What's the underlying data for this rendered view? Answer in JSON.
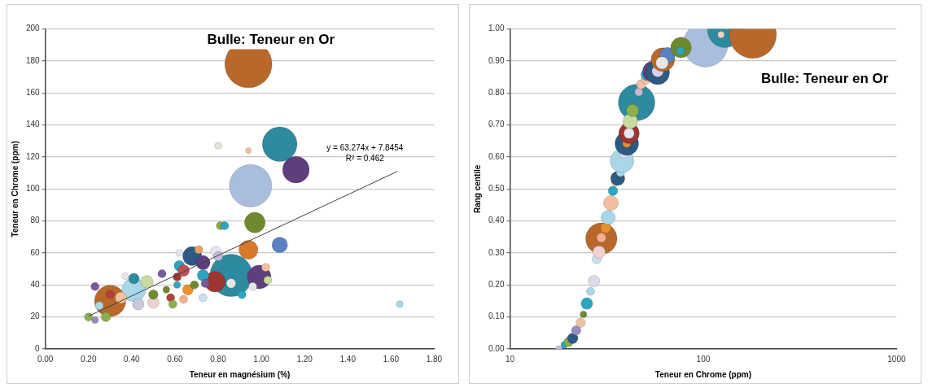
{
  "chart_data": [
    {
      "type": "bubble",
      "xlabel": "Teneur en magnésium (%)",
      "ylabel": "Teneur en Chrome (ppm)",
      "xlim": [
        0,
        1.8
      ],
      "ylim": [
        0,
        200
      ],
      "xticks": [
        {
          "value": 0,
          "label": "0.00"
        },
        {
          "value": 0.2,
          "label": "0.20"
        },
        {
          "value": 0.4,
          "label": "0.40"
        },
        {
          "value": 0.6,
          "label": "0.60"
        },
        {
          "value": 0.8,
          "label": "0.80"
        },
        {
          "value": 1,
          "label": "1.00"
        },
        {
          "value": 1.2,
          "label": "1.20"
        },
        {
          "value": 1.4,
          "label": "1.40"
        },
        {
          "value": 1.6,
          "label": "1.60"
        },
        {
          "value": 1.8,
          "label": "1.80"
        }
      ],
      "yticks": [
        0,
        20,
        40,
        60,
        80,
        100,
        120,
        140,
        160,
        180,
        200
      ],
      "grid": "y",
      "legend": false,
      "annotations": [
        "Bulle: Teneur en Or",
        {
          "text": "y = 63.274x + 7.8454",
          "x": 1.63,
          "y": 111
        },
        {
          "text": "R² = 0.462",
          "x": 1.63,
          "y": 111
        }
      ],
      "series": [
        {
          "x": [
            0.94,
            1.085,
            1.16,
            0.95,
            0.97,
            0.94,
            1.085,
            0.86,
            0.99,
            0.68,
            0.73,
            0.3,
            0.41,
            0.785,
            0.8,
            0.94,
            0.81,
            0.83,
            1.64,
            0.23,
            0.2,
            0.23,
            0.28,
            0.25,
            0.3,
            0.35,
            0.37,
            0.41,
            0.43,
            0.47,
            0.5,
            0.5,
            0.54,
            0.56,
            0.58,
            0.59,
            0.61,
            0.61,
            0.64,
            0.62,
            0.62,
            0.64,
            0.66,
            0.71,
            0.73,
            0.73,
            0.69,
            0.74,
            0.79,
            0.8,
            0.86,
            0.91,
            0.96,
            1.02,
            1.03
          ],
          "values": [
            178,
            128,
            112,
            102,
            79,
            62,
            65,
            46,
            45,
            58,
            54,
            30,
            37,
            42,
            127,
            124,
            77,
            77,
            28,
            39,
            20,
            18,
            20,
            27,
            34,
            32,
            45.5,
            44,
            28,
            42,
            29,
            34,
            47,
            37,
            32,
            28,
            45,
            40,
            31,
            60,
            52,
            49,
            37,
            62,
            32,
            46,
            40,
            41,
            61,
            58,
            41,
            34,
            39,
            51,
            43
          ],
          "sizes": [
            1,
            0.54,
            0.32,
            0.81,
            0.19,
            0.16,
            0.11,
            0.81,
            0.25,
            0.16,
            0.09,
            0.44,
            0.25,
            0.19,
            0.02,
            0.015,
            0.03,
            0.03,
            0.02,
            0.03,
            0.03,
            0.02,
            0.04,
            0.03,
            0.03,
            0.06,
            0.02,
            0.05,
            0.06,
            0.07,
            0.06,
            0.04,
            0.03,
            0.02,
            0.03,
            0.03,
            0.03,
            0.02,
            0.03,
            0.02,
            0.05,
            0.06,
            0.05,
            0.03,
            0.03,
            0.06,
            0.03,
            0.03,
            0.05,
            0.04,
            0.04,
            0.03,
            0.03,
            0.03,
            0.03
          ],
          "colors": [
            "#b8682a",
            "#2e8a9e",
            "#5e3f7e",
            "#a8bedc",
            "#6f8a2e",
            "#d8782a",
            "#5b82c0",
            "#2e8a9e",
            "#5e3f7e",
            "#2d5a82",
            "#5e3f7e",
            "#b8682a",
            "#a8d8e8",
            "#9e3530",
            "#dde6d8",
            "#f0c0a0",
            "#8aaa3e",
            "#2aa6c0",
            "#a8d8e8",
            "#7a5a9e",
            "#8ab04e",
            "#9a8ac0",
            "#8ab04e",
            "#a8d8e8",
            "#b8403a",
            "#f0c0a0",
            "#e6e6e6",
            "#2e8a9e",
            "#c8c8d8",
            "#c8dca0",
            "#f0d0d0",
            "#6f8a2e",
            "#7a5a9e",
            "#6f8a2e",
            "#b8403a",
            "#8ab04e",
            "#9e3530",
            "#2aa6c0",
            "#f0b090",
            "#e6e6e6",
            "#2aa6c0",
            "#c05050",
            "#e8902a",
            "#e8a060",
            "#c8e0ec",
            "#2aa6c0",
            "#6f8a2e",
            "#7a5a9e",
            "#e6e6ee",
            "#c8b8d8",
            "#e6e6e6",
            "#2aa6c0",
            "#e6e6e6",
            "#f0c0a0",
            "#c8dca0"
          ]
        },
        {
          "type": "line",
          "x": [
            0.2,
            1.63
          ],
          "values": [
            20.5,
            111.0
          ],
          "color": "#404040"
        }
      ]
    },
    {
      "type": "bubble",
      "xlabel": "Teneur en Chrome (ppm)",
      "ylabel": "Rang centile",
      "log": "x",
      "xlim": [
        10,
        1000
      ],
      "ylim": [
        0,
        1
      ],
      "xticks": [
        10,
        100,
        1000
      ],
      "yticks": [
        {
          "value": 0,
          "label": "0.00"
        },
        {
          "value": 0.1,
          "label": "0.10"
        },
        {
          "value": 0.2,
          "label": "0.20"
        },
        {
          "value": 0.3,
          "label": "0.30"
        },
        {
          "value": 0.4,
          "label": "0.40"
        },
        {
          "value": 0.5,
          "label": "0.50"
        },
        {
          "value": 0.6,
          "label": "0.60"
        },
        {
          "value": 0.7,
          "label": "0.70"
        },
        {
          "value": 0.8,
          "label": "0.80"
        },
        {
          "value": 0.9,
          "label": "0.90"
        },
        {
          "value": 1,
          "label": "1.00"
        }
      ],
      "grid": "y",
      "legend": false,
      "annotations": [
        "Bulle: Teneur en Or"
      ],
      "series": [
        {
          "x": [
            17.9,
            19.1,
            20.1,
            21.1,
            22.0,
            23.2,
            24.0,
            25.0,
            26.1,
            27.2,
            28.1,
            28.9,
            29.7,
            29.7,
            31.3,
            32.2,
            33.3,
            34.1,
            35.1,
            36.1,
            37.3,
            38.0,
            38.9,
            40.2,
            40.2,
            41.3,
            41.3,
            41.9,
            43.1,
            45.2,
            46.4,
            47.7,
            50.5,
            51.0,
            55.1,
            58.1,
            58.1,
            61.8,
            65.2,
            61.2,
            76.7,
            76.2,
            102.6,
            129.4,
            123.6,
            180.4
          ],
          "values": [
            0.0,
            0.013,
            0.022,
            0.033,
            0.058,
            0.082,
            0.108,
            0.142,
            0.18,
            0.212,
            0.281,
            0.303,
            0.345,
            0.348,
            0.379,
            0.411,
            0.456,
            0.494,
            0.522,
            0.533,
            0.551,
            0.588,
            0.611,
            0.642,
            0.642,
            0.674,
            0.674,
            0.712,
            0.745,
            0.77,
            0.803,
            0.827,
            0.842,
            0.857,
            0.867,
            0.863,
            0.868,
            0.904,
            0.918,
            0.894,
            0.942,
            0.931,
            0.951,
            0.996,
            0.982,
            0.982
          ],
          "sizes": [
            0.02,
            0.02,
            0.04,
            0.05,
            0.04,
            0.04,
            0.02,
            0.06,
            0.03,
            0.06,
            0.04,
            0.07,
            0.44,
            0.04,
            0.05,
            0.09,
            0.1,
            0.04,
            0.03,
            0.09,
            0.03,
            0.25,
            0.04,
            0.25,
            0.03,
            0.19,
            0.05,
            0.1,
            0.07,
            0.6,
            0.03,
            0.04,
            0.04,
            0.06,
            0.2,
            0.25,
            0.06,
            0.25,
            0.11,
            0.07,
            0.19,
            0.03,
            0.9,
            0.54,
            0.02,
            1
          ],
          "colors": [
            "#c8b8d8",
            "#2aa6c0",
            "#8ab04e",
            "#2d5a82",
            "#9a8ac0",
            "#f0c0a0",
            "#6f8a2e",
            "#2aa6c0",
            "#a8d8e8",
            "#dcdce8",
            "#c8e0ec",
            "#f0d0d0",
            "#b8682a",
            "#f0b090",
            "#e8902a",
            "#a8d8e8",
            "#f0c0a0",
            "#2aa6c0",
            "#f0c0a0",
            "#2d5a82",
            "#a8d8e8",
            "#a8d8e8",
            "#dcdce8",
            "#2d5a82",
            "#e8902a",
            "#9e3530",
            "#e6e6ee",
            "#c8dca0",
            "#8ab04e",
            "#2e8a9e",
            "#c8b8d8",
            "#f0c0a0",
            "#f0c0a0",
            "#2aa6c0",
            "#5e3f7e",
            "#2d5a82",
            "#dcd0e8",
            "#b8682a",
            "#5b82c0",
            "#e6e6ee",
            "#6f8a2e",
            "#2aa6c0",
            "#a8bedc",
            "#2e8a9e",
            "#f0d0c0",
            "#b8682a"
          ]
        }
      ]
    }
  ]
}
